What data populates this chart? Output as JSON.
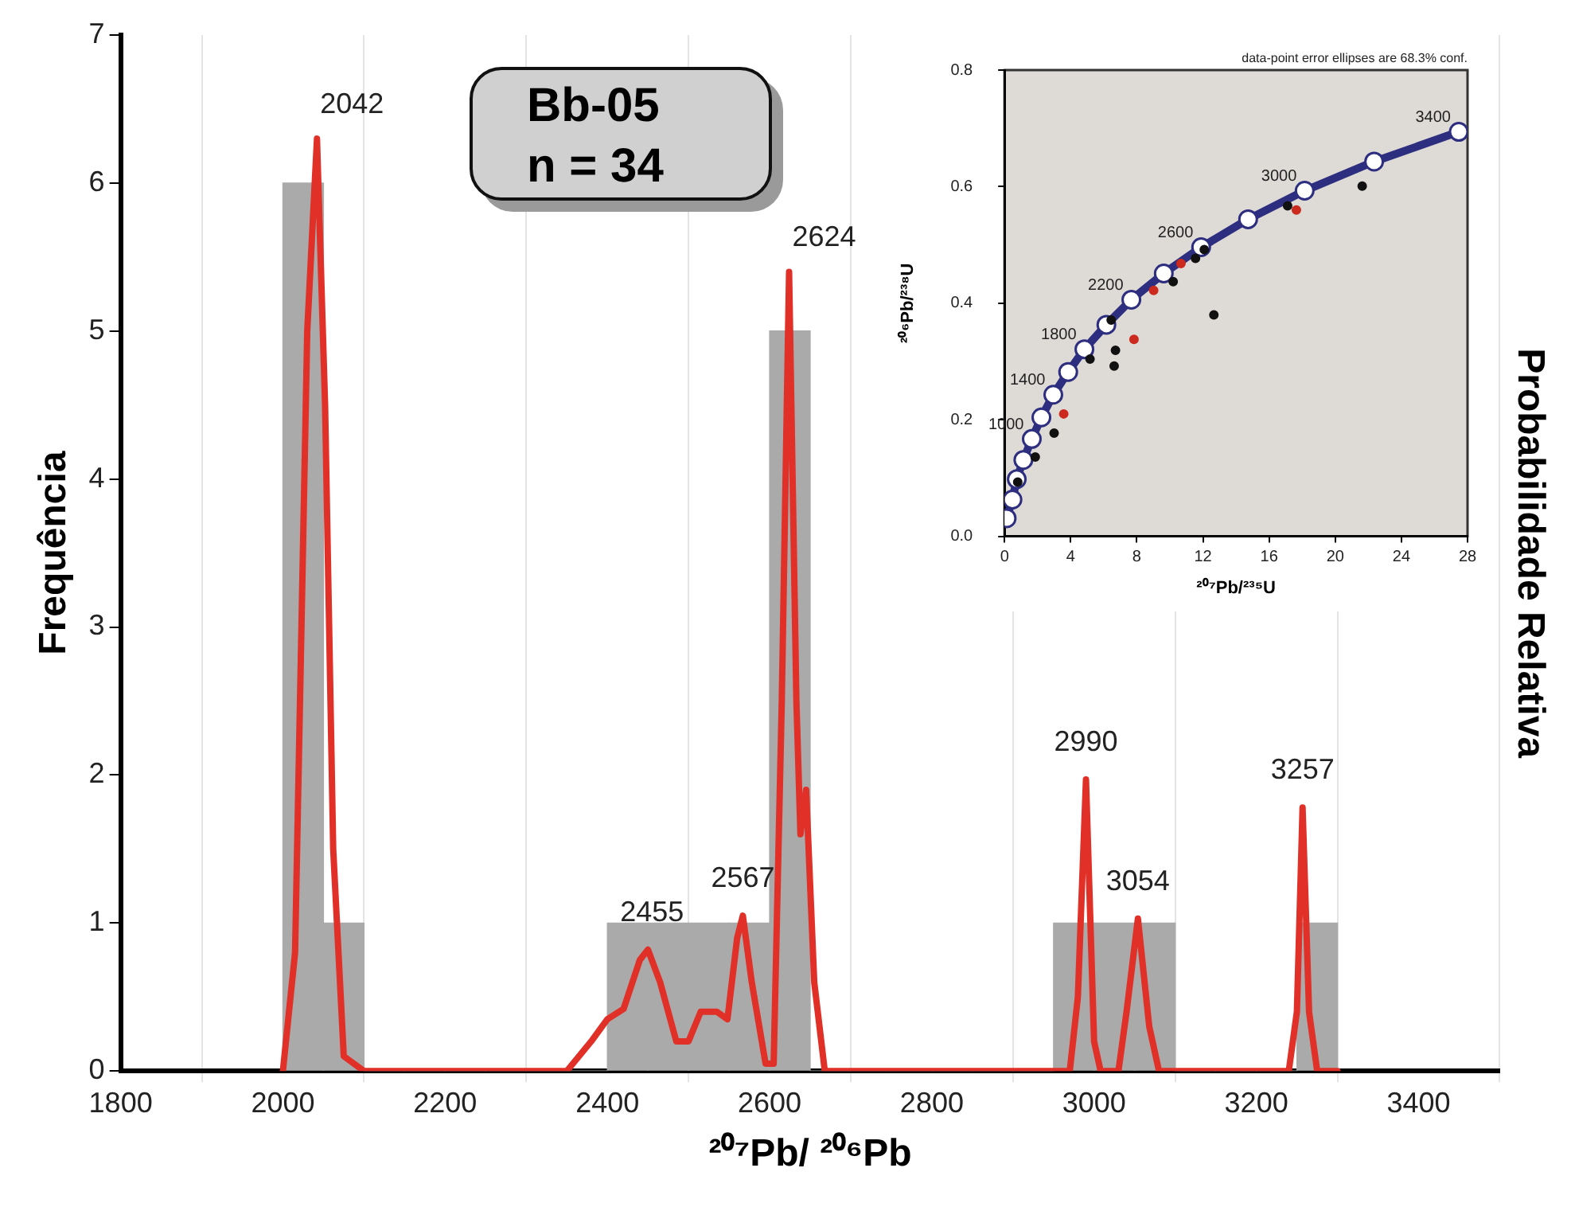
{
  "chart_data": [
    {
      "type": "histogram",
      "title": "Bb-05",
      "subtitle": "n = 34",
      "xlabel": "²⁰⁷Pb/ ²⁰⁶Pb",
      "ylabel": "Frequência",
      "y2label": "Probabilidade Relativa",
      "bins": [
        2000,
        2050,
        2100,
        2150,
        2200,
        2250,
        2300,
        2350,
        2400,
        2450,
        2500,
        2550,
        2600,
        2650,
        2700,
        2750,
        2800,
        2850,
        2900,
        2950,
        3000,
        3050,
        3100,
        3150,
        3200,
        3250,
        3300
      ],
      "values": [
        6,
        1,
        0,
        0,
        0,
        0,
        0,
        0,
        1,
        1,
        1,
        1,
        5,
        0,
        0,
        0,
        0,
        0,
        0,
        1,
        1,
        1,
        0,
        0,
        0,
        1
      ],
      "color": "#aaaaaa",
      "series": [
        {
          "type": "line",
          "color": "#e03028",
          "x": [
            2000,
            2015,
            2030,
            2042,
            2052,
            2062,
            2075,
            2100,
            2350,
            2380,
            2400,
            2420,
            2440,
            2450,
            2465,
            2485,
            2500,
            2515,
            2535,
            2548,
            2560,
            2567,
            2578,
            2595,
            2605,
            2615,
            2624,
            2633,
            2638,
            2645,
            2655,
            2668,
            2970,
            2980,
            2990,
            3000,
            3008,
            3030,
            3040,
            3054,
            3068,
            3080,
            3240,
            3250,
            3257,
            3265,
            3275,
            3300
          ],
          "values": [
            0,
            0.8,
            5.0,
            6.3,
            4.5,
            1.5,
            0.1,
            0,
            0,
            0.2,
            0.35,
            0.42,
            0.75,
            0.82,
            0.6,
            0.2,
            0.2,
            0.4,
            0.4,
            0.35,
            0.9,
            1.05,
            0.6,
            0.05,
            0.05,
            2.5,
            5.4,
            2.5,
            1.6,
            1.9,
            0.6,
            0,
            0,
            0.5,
            1.97,
            0.2,
            0,
            0,
            0.4,
            1.03,
            0.3,
            0,
            0,
            0.4,
            1.78,
            0.4,
            0,
            0
          ]
        }
      ],
      "xlim": [
        1800,
        3500
      ],
      "xticks": [
        1800,
        2000,
        2200,
        2400,
        2600,
        2800,
        3000,
        3200,
        3400
      ],
      "ylim": [
        0,
        7
      ],
      "yticks": [
        0,
        1,
        2,
        3,
        4,
        5,
        6,
        7
      ],
      "grid": "x",
      "marker": "none",
      "legend": false,
      "annotations": [
        {
          "text": "2042",
          "x": 2042,
          "y": 6.3
        },
        {
          "text": "2455",
          "x": 2455,
          "y": 0.82
        },
        {
          "text": "2567",
          "x": 2567,
          "y": 1.05
        },
        {
          "text": "2624",
          "x": 2624,
          "y": 5.4
        },
        {
          "text": "2990",
          "x": 2990,
          "y": 1.97
        },
        {
          "text": "3054",
          "x": 3054,
          "y": 1.03
        },
        {
          "text": "3257",
          "x": 3257,
          "y": 1.78
        }
      ]
    },
    {
      "type": "scatter",
      "xlabel": "²⁰⁷Pb/²³⁵U",
      "ylabel": "²⁰⁶Pb/²³⁸U",
      "series": [
        {
          "type": "line",
          "color": "#2e2e80",
          "x": [
            0.13,
            0.48,
            0.74,
            1.14,
            1.65,
            2.23,
            2.95,
            3.85,
            4.83,
            6.16,
            7.67,
            9.63,
            11.89,
            14.73,
            18.15,
            22.35,
            27.47
          ],
          "values": [
            0.031,
            0.063,
            0.098,
            0.131,
            0.167,
            0.204,
            0.243,
            0.282,
            0.321,
            0.363,
            0.406,
            0.451,
            0.496,
            0.544,
            0.593,
            0.643,
            0.694
          ]
        },
        {
          "type": "scatter",
          "color": "#111111",
          "x": [
            3.0,
            1.86,
            0.8,
            5.17,
            6.71,
            6.63,
            6.45,
            10.2,
            11.55,
            12.08,
            12.66,
            17.12,
            21.63
          ],
          "values": [
            0.177,
            0.136,
            0.093,
            0.304,
            0.319,
            0.292,
            0.371,
            0.437,
            0.477,
            0.492,
            0.38,
            0.567,
            0.601
          ]
        },
        {
          "type": "scatter",
          "color": "#cc2a1e",
          "x": [
            3.58,
            7.83,
            9.02,
            10.67,
            17.65
          ],
          "values": [
            0.21,
            0.338,
            0.422,
            0.468,
            0.56
          ]
        }
      ],
      "xlim": [
        0,
        28
      ],
      "xticks": [
        0,
        4,
        8,
        12,
        16,
        20,
        24,
        28
      ],
      "ylim": [
        0,
        0.8
      ],
      "yticks": [
        {
          "value": 0,
          "label": "0.0"
        },
        0.2,
        0.4,
        0.6,
        0.8
      ],
      "grid": false,
      "marker": "circle",
      "legend": false,
      "annotations": [
        "data-point error ellipses are 68.3% conf.",
        {
          "text": "1000",
          "x": 1.65,
          "y": 0.167
        },
        {
          "text": "1400",
          "x": 2.95,
          "y": 0.243
        },
        {
          "text": "1800",
          "x": 4.83,
          "y": 0.321
        },
        {
          "text": "2200",
          "x": 7.67,
          "y": 0.406
        },
        {
          "text": "2600",
          "x": 11.89,
          "y": 0.496
        },
        {
          "text": "3000",
          "x": 18.15,
          "y": 0.593
        },
        {
          "text": "3400",
          "x": 27.47,
          "y": 0.694
        }
      ]
    }
  ]
}
